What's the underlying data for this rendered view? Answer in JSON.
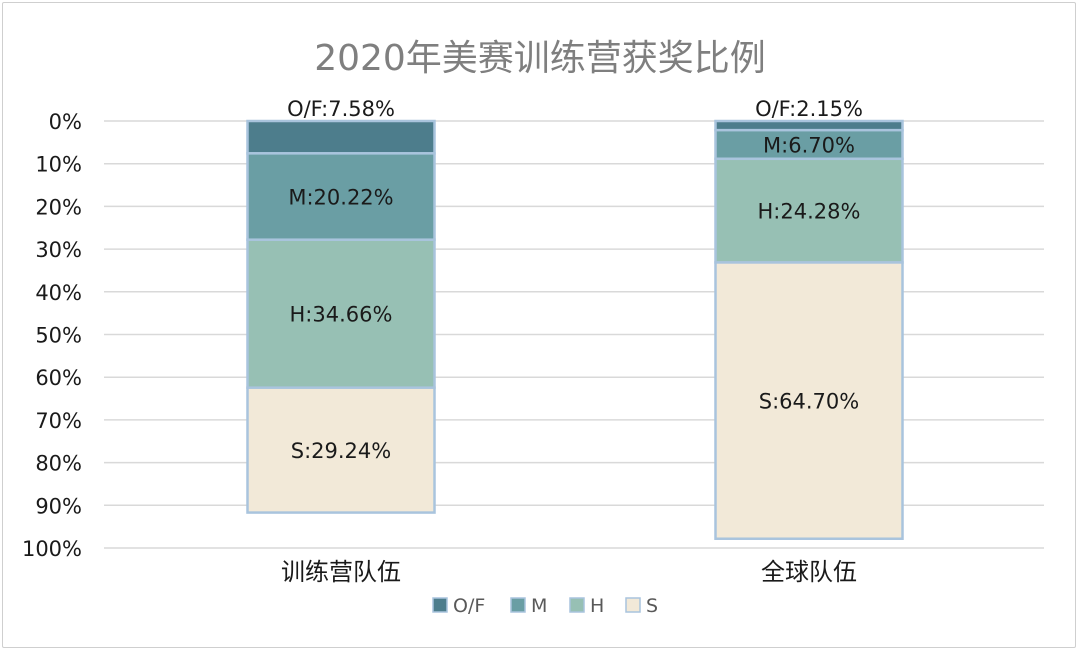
{
  "chart_data": {
    "type": "bar",
    "stacked": true,
    "title": "2020年美赛训练营获奖比例",
    "categories": [
      "训练营队伍",
      "全球队伍"
    ],
    "series": [
      {
        "name": "O/F",
        "values": [
          7.58,
          2.15
        ],
        "labels": [
          "O/F:7.58%",
          "O/F:2.15%"
        ]
      },
      {
        "name": "M",
        "values": [
          20.22,
          6.7
        ],
        "labels": [
          "M:20.22%",
          "M:6.70%"
        ]
      },
      {
        "name": "H",
        "values": [
          34.66,
          24.28
        ],
        "labels": [
          "H:34.66%",
          "H:24.28%"
        ]
      },
      {
        "name": "S",
        "values": [
          29.24,
          64.7
        ],
        "labels": [
          "S:29.24%",
          "S:64.70%"
        ]
      }
    ],
    "y_ticks": [
      "0%",
      "10%",
      "20%",
      "30%",
      "40%",
      "50%",
      "60%",
      "70%",
      "80%",
      "90%",
      "100%"
    ],
    "ylim": [
      0,
      100
    ],
    "y_axis_reversed": true,
    "grid": true,
    "legend_position": "bottom",
    "colors": {
      "O/F": "#4d7d8c",
      "M": "#6a9ea4",
      "H": "#97c0b4",
      "S": "#f2e9d8",
      "bar_border": "#a9c4dd",
      "grid": "#d9d9d9",
      "text": "#1a1a1a",
      "title": "#7f7f7f"
    }
  }
}
